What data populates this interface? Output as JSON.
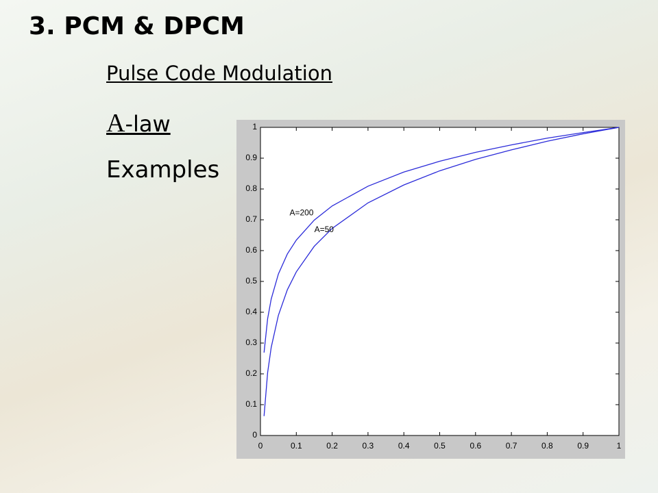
{
  "slide": {
    "title": "3. PCM & DPCM",
    "subtitle": "Pulse Code Modulation",
    "law": {
      "symbol": "A",
      "text": "-law"
    },
    "examples": "Examples"
  },
  "chart_data": {
    "type": "line",
    "x": [
      0.01,
      0.02,
      0.03,
      0.05,
      0.075,
      0.1,
      0.15,
      0.2,
      0.3,
      0.4,
      0.5,
      0.6,
      0.7,
      0.8,
      0.9,
      1
    ],
    "series": [
      {
        "name": "A=200",
        "color": "#2b2bd9",
        "values": [
          0.269,
          0.379,
          0.443,
          0.524,
          0.589,
          0.634,
          0.699,
          0.745,
          0.809,
          0.855,
          0.89,
          0.919,
          0.943,
          0.965,
          0.983,
          1
        ]
      },
      {
        "name": "A=50",
        "color": "#2b2bd9",
        "values": [
          0.063,
          0.204,
          0.286,
          0.39,
          0.473,
          0.531,
          0.614,
          0.672,
          0.755,
          0.813,
          0.859,
          0.896,
          0.927,
          0.955,
          0.979,
          1
        ]
      }
    ],
    "xlim": [
      0,
      1
    ],
    "ylim": [
      0,
      1
    ],
    "xticks": [
      0,
      0.1,
      0.2,
      0.3,
      0.4,
      0.5,
      0.6,
      0.7,
      0.8,
      0.9,
      1
    ],
    "yticks": [
      0,
      0.1,
      0.2,
      0.3,
      0.4,
      0.5,
      0.6,
      0.7,
      0.8,
      0.9,
      1
    ],
    "grid": false
  }
}
